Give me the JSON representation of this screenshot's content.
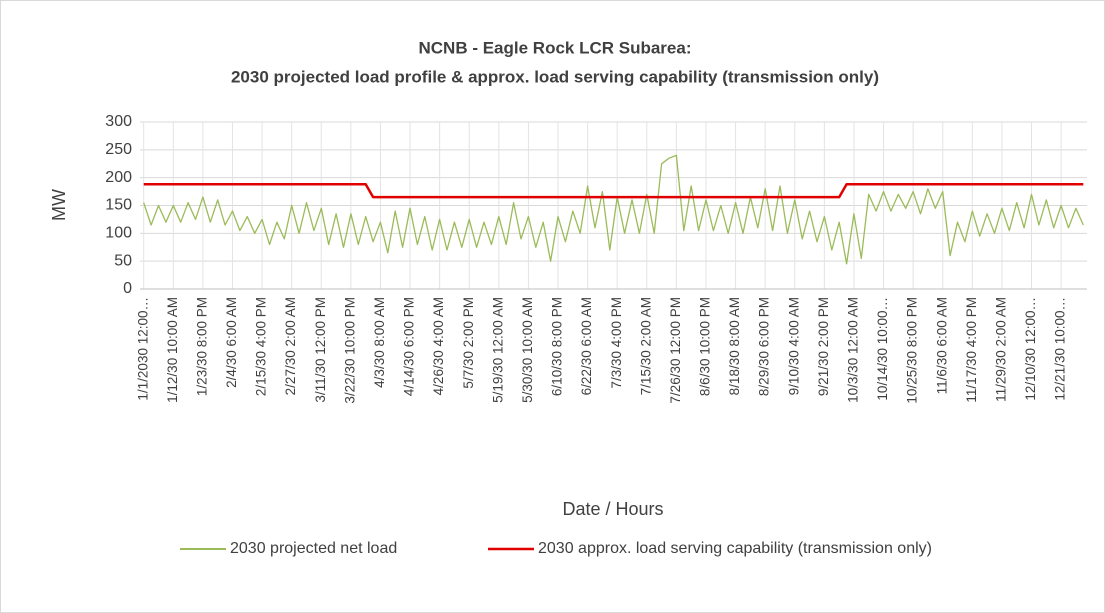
{
  "chart_data": {
    "type": "line",
    "title": [
      "NCNB - Eagle Rock LCR Subarea:",
      "2030 projected load profile & approx. load serving capability (transmission only)"
    ],
    "xlabel": "Date / Hours",
    "ylabel": "MW",
    "categories": [
      "1/1/2030 12:00…",
      null,
      null,
      null,
      "1/12/30 10:00 AM",
      null,
      null,
      null,
      "1/23/30 8:00 PM",
      null,
      null,
      null,
      "2/4/30 6:00 AM",
      null,
      null,
      null,
      "2/15/30 4:00 PM",
      null,
      null,
      null,
      "2/27/30 2:00 AM",
      null,
      null,
      null,
      "3/11/30 12:00 PM",
      null,
      null,
      null,
      "3/22/30 10:00 PM",
      null,
      null,
      null,
      "4/3/30 8:00 AM",
      null,
      null,
      null,
      "4/14/30 6:00 PM",
      null,
      null,
      null,
      "4/26/30 4:00 AM",
      null,
      null,
      null,
      "5/7/30 2:00 PM",
      null,
      null,
      null,
      "5/19/30 12:00 AM",
      null,
      null,
      null,
      "5/30/30 10:00 AM",
      null,
      null,
      null,
      "6/10/30 8:00 PM",
      null,
      null,
      null,
      "6/22/30 6:00 AM",
      null,
      null,
      null,
      "7/3/30 4:00 PM",
      null,
      null,
      null,
      "7/15/30 2:00 AM",
      null,
      null,
      null,
      "7/26/30 12:00 PM",
      null,
      null,
      null,
      "8/6/30 10:00 PM",
      null,
      null,
      null,
      "8/18/30 8:00 AM",
      null,
      null,
      null,
      "8/29/30 6:00 PM",
      null,
      null,
      null,
      "9/10/30 4:00 AM",
      null,
      null,
      null,
      "9/21/30 2:00 PM",
      null,
      null,
      null,
      "10/3/30 12:00 AM",
      null,
      null,
      null,
      "10/14/30 10:00…",
      null,
      null,
      null,
      "10/25/30 8:00 PM",
      null,
      null,
      null,
      "11/6/30 6:00 AM",
      null,
      null,
      null,
      "11/17/30 4:00 PM",
      null,
      null,
      null,
      "11/29/30 2:00 AM",
      null,
      null,
      null,
      "12/10/30 12:00…",
      null,
      null,
      null,
      "12/21/30 10:00…",
      null,
      null,
      null
    ],
    "series": [
      {
        "name": "2030 projected net load",
        "color": "#9bbb59",
        "values": [
          155,
          115,
          150,
          120,
          150,
          120,
          155,
          125,
          165,
          120,
          160,
          115,
          140,
          105,
          130,
          100,
          125,
          80,
          120,
          90,
          150,
          100,
          155,
          105,
          145,
          80,
          135,
          75,
          135,
          80,
          130,
          85,
          120,
          65,
          140,
          75,
          145,
          80,
          130,
          70,
          125,
          70,
          120,
          75,
          125,
          75,
          120,
          80,
          130,
          80,
          155,
          90,
          130,
          75,
          120,
          50,
          130,
          85,
          140,
          100,
          185,
          110,
          175,
          70,
          165,
          100,
          160,
          100,
          170,
          100,
          225,
          235,
          240,
          105,
          185,
          105,
          160,
          105,
          150,
          100,
          155,
          100,
          165,
          110,
          180,
          105,
          185,
          100,
          160,
          90,
          140,
          85,
          130,
          70,
          120,
          45,
          135,
          55,
          170,
          140,
          175,
          140,
          170,
          145,
          175,
          135,
          180,
          145,
          175,
          60,
          120,
          85,
          140,
          95,
          135,
          100,
          145,
          105,
          155,
          110,
          170,
          115,
          160,
          110,
          150,
          110,
          145,
          115
        ]
      },
      {
        "name": "2030 approx. load serving  capability (transmission only)",
        "color": "#e00000",
        "values": [
          188,
          188,
          188,
          188,
          188,
          188,
          188,
          188,
          188,
          188,
          188,
          188,
          188,
          188,
          188,
          188,
          188,
          188,
          188,
          188,
          188,
          188,
          188,
          188,
          188,
          188,
          188,
          188,
          188,
          188,
          188,
          165,
          165,
          165,
          165,
          165,
          165,
          165,
          165,
          165,
          165,
          165,
          165,
          165,
          165,
          165,
          165,
          165,
          165,
          165,
          165,
          165,
          165,
          165,
          165,
          165,
          165,
          165,
          165,
          165,
          165,
          165,
          165,
          165,
          165,
          165,
          165,
          165,
          165,
          165,
          165,
          165,
          165,
          165,
          165,
          165,
          165,
          165,
          165,
          165,
          165,
          165,
          165,
          165,
          165,
          165,
          165,
          165,
          165,
          165,
          165,
          165,
          165,
          165,
          165,
          188,
          188,
          188,
          188,
          188,
          188,
          188,
          188,
          188,
          188,
          188,
          188,
          188,
          188,
          188,
          188,
          188,
          188,
          188,
          188,
          188,
          188,
          188,
          188,
          188,
          188,
          188,
          188,
          188,
          188,
          188,
          188,
          188
        ]
      }
    ],
    "ylim": [
      0,
      300
    ],
    "yticks": [
      0,
      50,
      100,
      150,
      200,
      250,
      300
    ],
    "grid": true,
    "legend": "bottom"
  }
}
